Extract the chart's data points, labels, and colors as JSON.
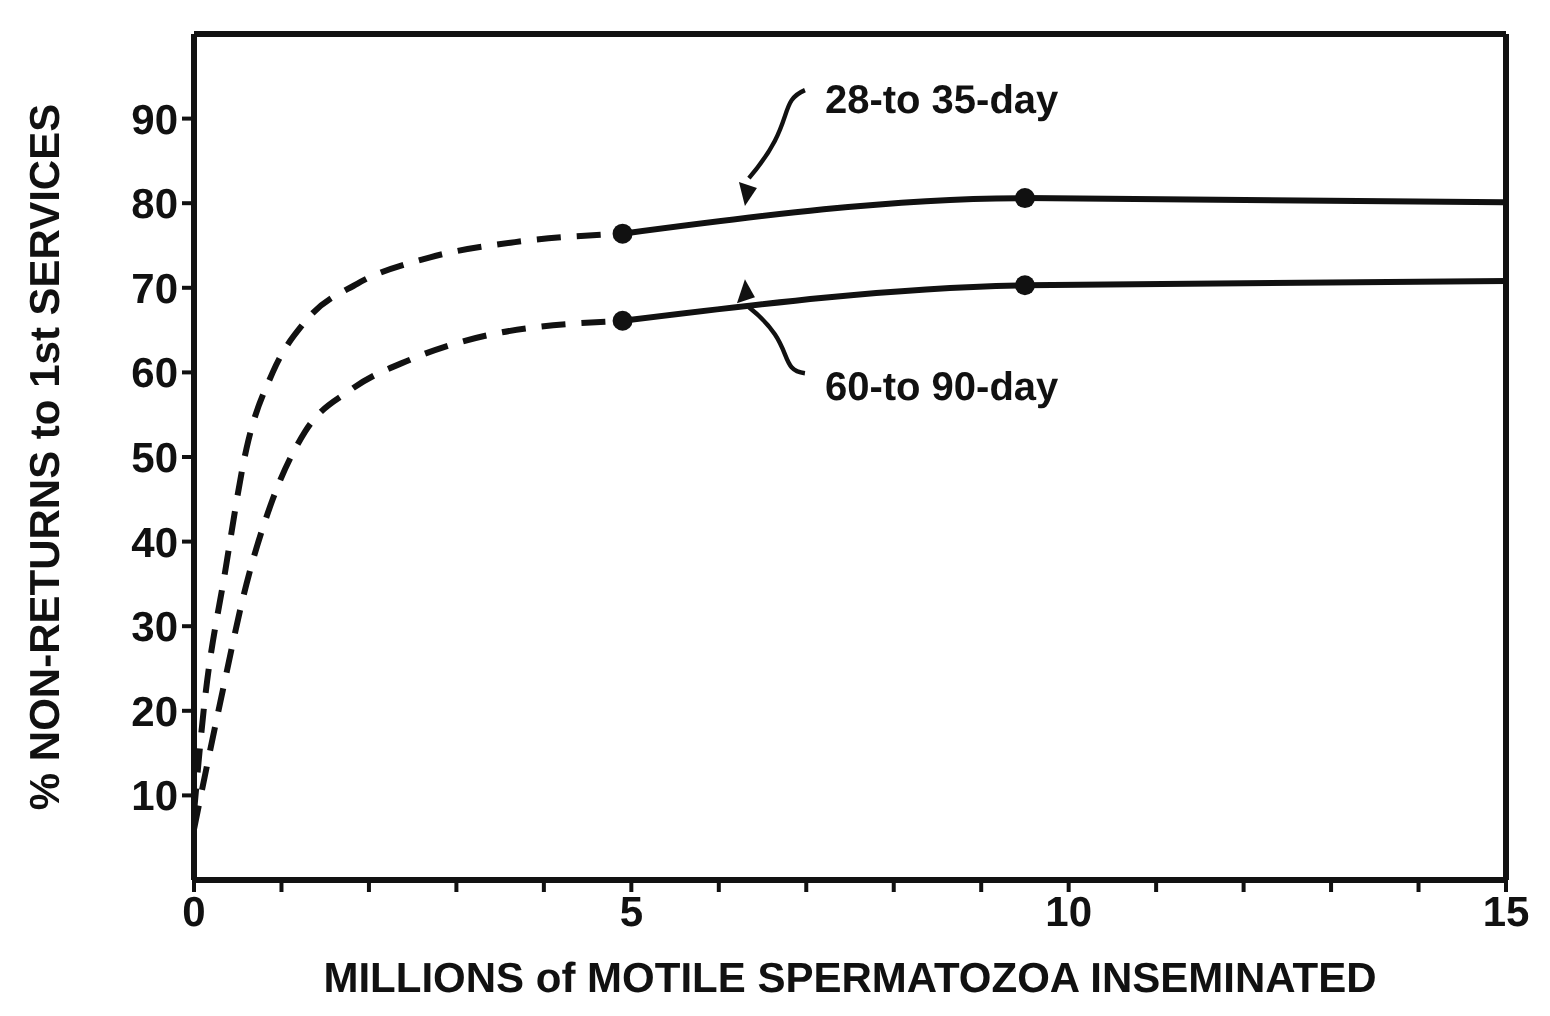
{
  "chart_data": {
    "type": "line",
    "xlabel": "MILLIONS of MOTILE SPERMATOZOA INSEMINATED",
    "ylabel": "% NON-RETURNS to 1st SERVICES",
    "xlim": [
      0,
      15
    ],
    "xticks": [
      0,
      {
        "value": 1,
        "label": null
      },
      {
        "value": 2,
        "label": null
      },
      {
        "value": 3,
        "label": null
      },
      {
        "value": 4,
        "label": null
      },
      5,
      {
        "value": 6,
        "label": null
      },
      {
        "value": 7,
        "label": null
      },
      {
        "value": 8,
        "label": null
      },
      {
        "value": 9,
        "label": null
      },
      10,
      {
        "value": 11,
        "label": null
      },
      {
        "value": 12,
        "label": null
      },
      {
        "value": 13,
        "label": null
      },
      {
        "value": 14,
        "label": null
      },
      15
    ],
    "ylim": [
      0,
      100
    ],
    "yticks": [
      10,
      20,
      30,
      40,
      50,
      60,
      70,
      80,
      90
    ],
    "grid": false,
    "legend": false,
    "series": [
      {
        "line_style": "dashed",
        "color": "#111111",
        "x": [
          0,
          0.11,
          0.36,
          0.6,
          0.9,
          1.27,
          1.87,
          2.7,
          3.67,
          4.9
        ],
        "values": [
          8,
          20,
          36.7,
          51,
          60,
          66,
          70.5,
          73.6,
          75.4,
          76.4
        ]
      },
      {
        "line_style": "solid",
        "name": "28-to 35-day",
        "color": "#111111",
        "x": [
          4.9,
          9.5,
          15
        ],
        "values": [
          76.4,
          80.6,
          80.1
        ]
      },
      {
        "type": "scatter",
        "marker": "circle",
        "color": "#111111",
        "x": [
          4.9,
          9.5
        ],
        "values": [
          76.4,
          80.6
        ]
      },
      {
        "line_style": "dashed",
        "color": "#111111",
        "x": [
          0,
          0.3,
          0.6,
          0.9,
          1.27,
          1.8,
          2.47,
          3.5,
          4.9
        ],
        "values": [
          6,
          21,
          35,
          45,
          53,
          58,
          61.5,
          64.7,
          66.1
        ]
      },
      {
        "line_style": "solid",
        "name": "60-to 90-day",
        "color": "#111111",
        "x": [
          4.9,
          9.5,
          15
        ],
        "values": [
          66.1,
          70.3,
          70.8
        ]
      },
      {
        "type": "scatter",
        "marker": "circle",
        "color": "#111111",
        "x": [
          4.9,
          9.5
        ],
        "values": [
          66.1,
          70.3
        ]
      }
    ]
  }
}
